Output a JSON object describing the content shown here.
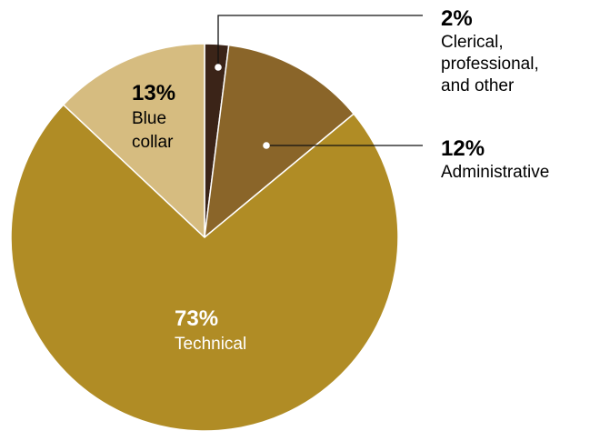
{
  "chart_data": {
    "type": "pie",
    "start_angle_deg": 0,
    "direction": "clockwise",
    "slices": [
      {
        "key": "clerical",
        "percent_label": "2%",
        "value": 2,
        "label_lines": [
          "Clerical,",
          "professional,",
          "and other"
        ],
        "color": "#3b2418",
        "label_color": "#000000",
        "label_style": "callout"
      },
      {
        "key": "administrative",
        "percent_label": "12%",
        "value": 12,
        "label_lines": [
          "Administrative"
        ],
        "color": "#8a6529",
        "label_color": "#000000",
        "label_style": "callout"
      },
      {
        "key": "technical",
        "percent_label": "73%",
        "value": 73,
        "label_lines": [
          "Technical"
        ],
        "color": "#b08c25",
        "label_color": "#ffffff",
        "label_style": "inside"
      },
      {
        "key": "blue-collar",
        "percent_label": "13%",
        "value": 13,
        "label_lines": [
          "Blue",
          "collar"
        ],
        "color": "#d6bc80",
        "label_color": "#000000",
        "label_style": "inside"
      }
    ],
    "title": "",
    "legend": "none"
  }
}
